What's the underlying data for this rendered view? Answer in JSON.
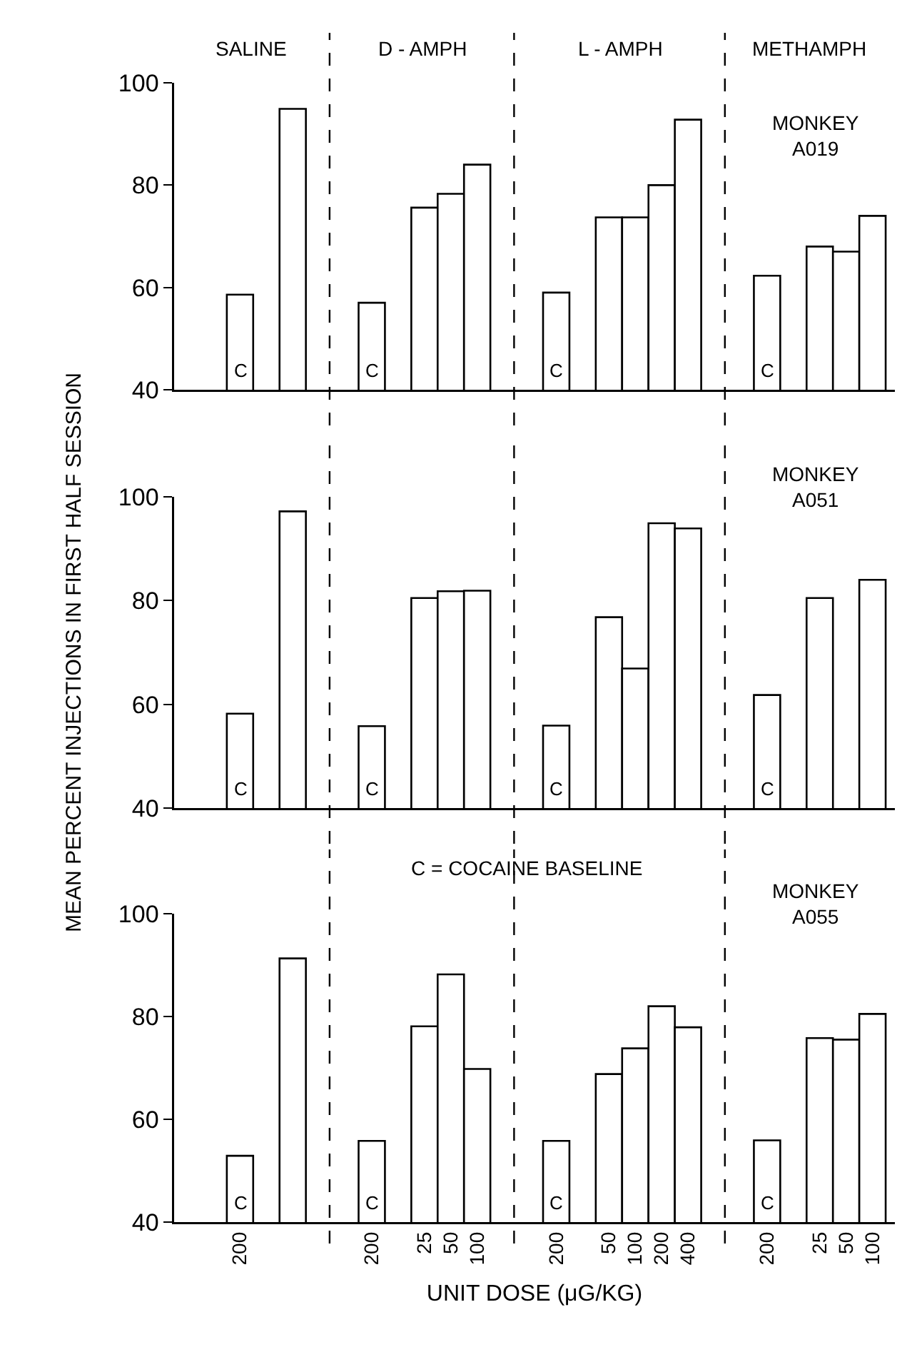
{
  "chart_data": [
    {
      "type": "bar",
      "categories": [
        null,
        null,
        "200",
        null,
        null,
        null,
        null,
        "200",
        null,
        "25",
        "50",
        "100",
        null,
        null,
        "200",
        null,
        "50",
        "100",
        "200",
        "400",
        null,
        null,
        "200",
        null,
        "25",
        "50",
        "100"
      ],
      "values": [
        null,
        null,
        58.6,
        null,
        94.9,
        null,
        null,
        57,
        null,
        75.6,
        78.3,
        84,
        null,
        null,
        59,
        null,
        73.7,
        73.7,
        80,
        92.8,
        null,
        null,
        62.3,
        null,
        68,
        67,
        74
      ],
      "value_labels": [
        null,
        null,
        "C",
        null,
        null,
        null,
        null,
        "C",
        null,
        null,
        null,
        null,
        null,
        null,
        "C",
        null,
        null,
        null,
        null,
        null,
        null,
        null,
        "C",
        null,
        null,
        null,
        null
      ],
      "color": "#ffffff",
      "ylim": [
        40,
        100
      ],
      "yticks": [
        40,
        60,
        80,
        100
      ],
      "tick_labels": "y",
      "annotations": [
        "SALINE",
        "D - AMPH",
        "L - AMPH",
        "METHAMPH",
        "MONKEY\nA019"
      ]
    },
    {
      "type": "bar",
      "categories": [
        null,
        null,
        "200",
        null,
        null,
        null,
        null,
        "200",
        null,
        "25",
        "50",
        "100",
        null,
        null,
        "200",
        null,
        "50",
        "100",
        "200",
        "400",
        null,
        null,
        "200",
        null,
        "25",
        "50",
        "100"
      ],
      "values": [
        null,
        null,
        58.2,
        null,
        97.2,
        null,
        null,
        55.8,
        null,
        80.5,
        81.8,
        81.9,
        null,
        null,
        55.9,
        null,
        76.8,
        66.9,
        94.9,
        93.9,
        null,
        null,
        61.8,
        null,
        80.5,
        null,
        84
      ],
      "value_labels": [
        null,
        null,
        "C",
        null,
        null,
        null,
        null,
        "C",
        null,
        null,
        null,
        null,
        null,
        null,
        "C",
        null,
        null,
        null,
        null,
        null,
        null,
        null,
        "C",
        null,
        null,
        null,
        null
      ],
      "color": "#ffffff",
      "ylim": [
        40,
        100
      ],
      "yticks": [
        40,
        60,
        80,
        100
      ],
      "tick_labels": "y",
      "ylabel": "MEAN PERCENT INJECTIONS IN FIRST HALF SESSION",
      "annotations": [
        "MONKEY\nA051"
      ]
    },
    {
      "type": "bar",
      "categories": [
        null,
        null,
        "200",
        null,
        null,
        null,
        null,
        "200",
        null,
        "25",
        "50",
        "100",
        null,
        null,
        "200",
        null,
        "50",
        "100",
        "200",
        "400",
        null,
        null,
        "200",
        null,
        "25",
        "50",
        "100"
      ],
      "values": [
        null,
        null,
        52.9,
        null,
        91.3,
        null,
        null,
        55.8,
        null,
        78.1,
        88.2,
        69.8,
        null,
        null,
        55.8,
        null,
        68.8,
        73.8,
        82,
        77.9,
        null,
        null,
        55.9,
        null,
        75.8,
        75.5,
        80.5
      ],
      "value_labels": [
        null,
        null,
        "C",
        null,
        null,
        null,
        null,
        "C",
        null,
        null,
        null,
        null,
        null,
        null,
        "C",
        null,
        null,
        null,
        null,
        null,
        null,
        null,
        "C",
        null,
        null,
        null,
        null
      ],
      "color": "#ffffff",
      "ylim": [
        40,
        100
      ],
      "yticks": [
        40,
        60,
        80,
        100
      ],
      "xlabel": "UNIT DOSE (μG/KG)",
      "annotations": [
        "C = COCAINE BASELINE",
        "MONKEY\nA055"
      ]
    }
  ]
}
